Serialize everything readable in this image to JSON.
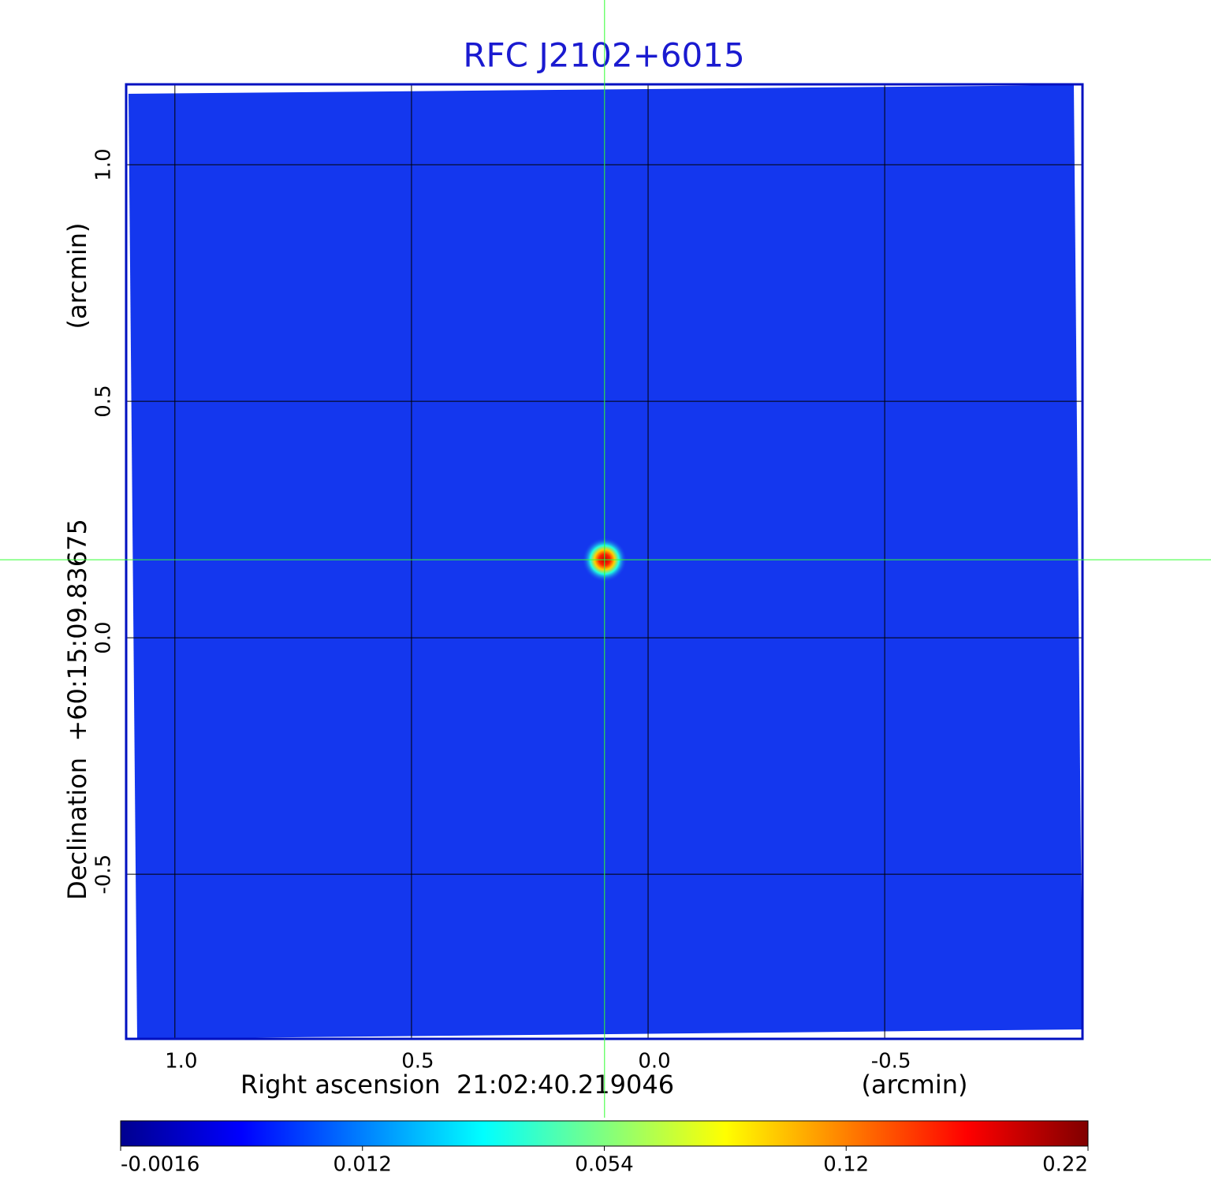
{
  "chart_data": {
    "type": "image",
    "title": "RFC J2102+6015",
    "x_label": "Right ascension  21:02:40.219046",
    "x_unit": "(arcmin)",
    "y_label": "Declination  +60:15:09.83675",
    "y_unit": "(arcmin)",
    "xlim": [
      1.103,
      -0.918
    ],
    "ylim": [
      -0.848,
      1.17
    ],
    "xticks": [
      {
        "value": 1,
        "label": "1.0"
      },
      0.5,
      {
        "value": 0,
        "label": "0.0"
      },
      -0.5
    ],
    "yticks": [
      -0.5,
      {
        "value": 0,
        "label": "0.0"
      },
      0.5,
      {
        "value": 1,
        "label": "1.0"
      }
    ],
    "grid": true,
    "crosshair": {
      "x": 0.092,
      "y": 0.165
    },
    "colorbar": {
      "ticks": [
        -0.0016,
        0.012,
        0.054,
        0.12,
        0.22
      ],
      "colors": [
        "#00008f",
        "#0000ff",
        "#0080ff",
        "#00ffff",
        "#80ff80",
        "#ffff00",
        "#ff8000",
        "#ff0000",
        "#800000"
      ]
    }
  }
}
